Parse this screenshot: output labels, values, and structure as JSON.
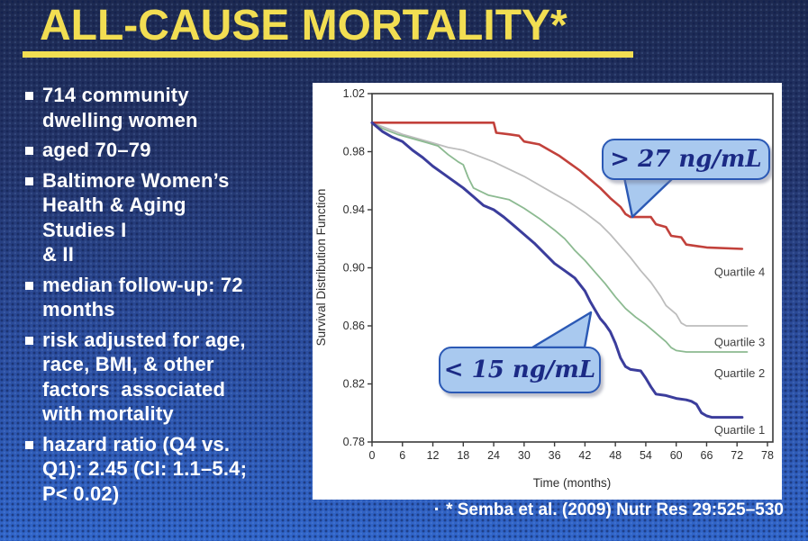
{
  "slide": {
    "title": "ALL-CAUSE MORTALITY*",
    "bullets": [
      "714 community\ndwelling women",
      "aged 70–79",
      "Baltimore Women’s\nHealth & Aging\nStudies I\n& II",
      "median follow-up: 72\nmonths",
      "risk adjusted for age,\nrace, BMI, & other\nfactors  associated\nwith mortality",
      "hazard ratio (Q4 vs.\nQ1): 2.45 (CI: 1.1–5.4;\nP< 0.02)"
    ],
    "footer_marker": "▪",
    "footer_text": "* Semba et al. (2009) Nutr Res 29:525–530"
  },
  "colors": {
    "background_top": "#1d2950",
    "background_bottom": "#3166cb",
    "title_yellow": "#f2de52",
    "bullet_text": "#ffffff",
    "chart_background": "#ffffff",
    "axis": "#3a3a3a",
    "quartile4_red": "#c2413b",
    "quartile3_gray": "#bdbdbd",
    "quartile2_green": "#8cba91",
    "quartile1_blue": "#3b3d9c",
    "callout_fill": "#a9c9ef",
    "callout_border": "#2b59b5",
    "callout_text": "#1b2a85"
  },
  "chart_data": {
    "type": "line",
    "title": "",
    "xlabel": "Time (months)",
    "ylabel": "Survival Distribution Function",
    "xlim": [
      0,
      78
    ],
    "ylim": [
      0.78,
      1.02
    ],
    "x_ticks": [
      0,
      6,
      12,
      18,
      24,
      30,
      36,
      42,
      48,
      54,
      60,
      66,
      72,
      78
    ],
    "y_ticks": [
      1.02,
      0.98,
      0.94,
      0.9,
      0.86,
      0.82,
      0.78
    ],
    "grid": false,
    "legend_position": "inline-right",
    "series": [
      {
        "name": "Quartile 3",
        "color": "#bdbdbd",
        "width": 1.8,
        "points": [
          [
            0,
            1.0
          ],
          [
            3,
            0.996
          ],
          [
            6,
            0.992
          ],
          [
            9,
            0.989
          ],
          [
            12,
            0.986
          ],
          [
            15,
            0.983
          ],
          [
            18,
            0.981
          ],
          [
            21,
            0.977
          ],
          [
            24,
            0.973
          ],
          [
            27,
            0.968
          ],
          [
            30,
            0.963
          ],
          [
            33,
            0.957
          ],
          [
            36,
            0.951
          ],
          [
            39,
            0.945
          ],
          [
            42,
            0.938
          ],
          [
            45,
            0.93
          ],
          [
            47,
            0.923
          ],
          [
            49,
            0.915
          ],
          [
            51,
            0.907
          ],
          [
            53,
            0.898
          ],
          [
            55,
            0.89
          ],
          [
            57,
            0.88
          ],
          [
            58,
            0.874
          ],
          [
            60,
            0.868
          ],
          [
            61,
            0.862
          ],
          [
            62,
            0.86
          ],
          [
            74,
            0.86
          ]
        ]
      },
      {
        "name": "Quartile 2",
        "color": "#8cba91",
        "width": 1.8,
        "points": [
          [
            0,
            1.0
          ],
          [
            2,
            0.996
          ],
          [
            5,
            0.992
          ],
          [
            8,
            0.989
          ],
          [
            11,
            0.986
          ],
          [
            13,
            0.984
          ],
          [
            15,
            0.978
          ],
          [
            17,
            0.973
          ],
          [
            18,
            0.971
          ],
          [
            19,
            0.962
          ],
          [
            20,
            0.955
          ],
          [
            23,
            0.95
          ],
          [
            27,
            0.947
          ],
          [
            30,
            0.941
          ],
          [
            33,
            0.934
          ],
          [
            36,
            0.926
          ],
          [
            38,
            0.92
          ],
          [
            40,
            0.912
          ],
          [
            42,
            0.905
          ],
          [
            44,
            0.897
          ],
          [
            46,
            0.889
          ],
          [
            48,
            0.88
          ],
          [
            50,
            0.872
          ],
          [
            52,
            0.866
          ],
          [
            54,
            0.861
          ],
          [
            56,
            0.855
          ],
          [
            58,
            0.849
          ],
          [
            59,
            0.845
          ],
          [
            60,
            0.843
          ],
          [
            62,
            0.842
          ],
          [
            74,
            0.842
          ]
        ]
      },
      {
        "name": "Quartile 4",
        "color": "#c2413b",
        "width": 2.6,
        "points": [
          [
            0,
            1.0
          ],
          [
            24,
            1.0
          ],
          [
            24.5,
            0.993
          ],
          [
            27,
            0.992
          ],
          [
            29,
            0.991
          ],
          [
            30,
            0.987
          ],
          [
            33,
            0.985
          ],
          [
            35,
            0.981
          ],
          [
            37,
            0.977
          ],
          [
            39,
            0.972
          ],
          [
            41,
            0.967
          ],
          [
            43,
            0.961
          ],
          [
            45,
            0.955
          ],
          [
            47,
            0.948
          ],
          [
            49,
            0.942
          ],
          [
            50,
            0.937
          ],
          [
            51,
            0.935
          ],
          [
            55,
            0.935
          ],
          [
            56,
            0.93
          ],
          [
            58,
            0.928
          ],
          [
            59,
            0.922
          ],
          [
            61,
            0.921
          ],
          [
            62,
            0.916
          ],
          [
            64,
            0.915
          ],
          [
            66,
            0.914
          ],
          [
            73,
            0.913
          ]
        ]
      },
      {
        "name": "Quartile 1",
        "color": "#3b3d9c",
        "width": 3,
        "points": [
          [
            0,
            1.0
          ],
          [
            2,
            0.994
          ],
          [
            4,
            0.99
          ],
          [
            6,
            0.987
          ],
          [
            8,
            0.981
          ],
          [
            10,
            0.976
          ],
          [
            12,
            0.97
          ],
          [
            14,
            0.965
          ],
          [
            16,
            0.96
          ],
          [
            18,
            0.955
          ],
          [
            20,
            0.949
          ],
          [
            22,
            0.943
          ],
          [
            24,
            0.94
          ],
          [
            26,
            0.935
          ],
          [
            28,
            0.929
          ],
          [
            30,
            0.923
          ],
          [
            32,
            0.917
          ],
          [
            34,
            0.91
          ],
          [
            36,
            0.903
          ],
          [
            38,
            0.898
          ],
          [
            40,
            0.893
          ],
          [
            42,
            0.884
          ],
          [
            43,
            0.877
          ],
          [
            44,
            0.871
          ],
          [
            45,
            0.865
          ],
          [
            46,
            0.861
          ],
          [
            47,
            0.856
          ],
          [
            48,
            0.848
          ],
          [
            49,
            0.838
          ],
          [
            50,
            0.832
          ],
          [
            51,
            0.83
          ],
          [
            53,
            0.829
          ],
          [
            54,
            0.824
          ],
          [
            55,
            0.818
          ],
          [
            56,
            0.813
          ],
          [
            58,
            0.812
          ],
          [
            60,
            0.81
          ],
          [
            62,
            0.809
          ],
          [
            63,
            0.808
          ],
          [
            64,
            0.806
          ],
          [
            65,
            0.8
          ],
          [
            66,
            0.798
          ],
          [
            67,
            0.797
          ],
          [
            73,
            0.797
          ]
        ]
      }
    ],
    "series_labels": [
      {
        "text": "Quartile 4",
        "x": 72.5,
        "y": 0.897
      },
      {
        "text": "Quartile 3",
        "x": 72.5,
        "y": 0.8485
      },
      {
        "text": "Quartile 2",
        "x": 72.5,
        "y": 0.827
      },
      {
        "text": "Quartile 1",
        "x": 72.5,
        "y": 0.788
      }
    ],
    "annotations": [
      {
        "text": "> 27 ng/mL",
        "box": {
          "x": 321,
          "y": 62,
          "w": 187,
          "h": 46
        },
        "tail": [
          [
            346,
            105
          ],
          [
            401,
            105
          ],
          [
            355,
            149
          ]
        ]
      },
      {
        "text": "< 15 ng/mL",
        "box": {
          "x": 140,
          "y": 293,
          "w": 180,
          "h": 52
        },
        "tail": [
          [
            244,
            294
          ],
          [
            302,
            294
          ],
          [
            309,
            255
          ]
        ]
      }
    ]
  }
}
